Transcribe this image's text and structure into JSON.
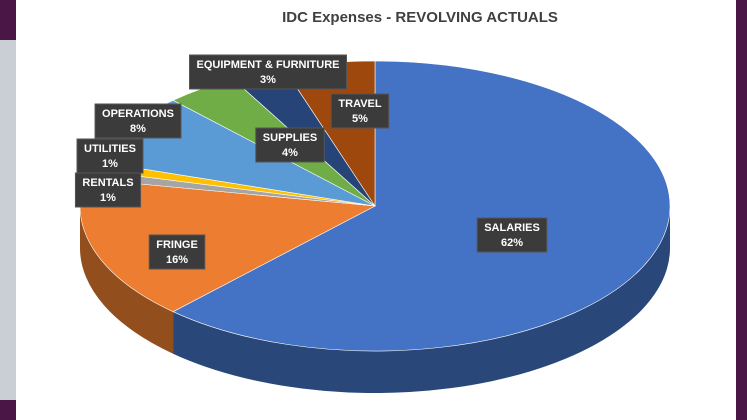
{
  "chart_data": {
    "type": "pie",
    "title": "IDC Expenses - REVOLVING ACTUALS",
    "categories": [
      "SALARIES",
      "FRINGE",
      "RENTALS",
      "UTILITIES",
      "OPERATIONS",
      "SUPPLIES",
      "EQUIPMENT & FURNITURE",
      "TRAVEL"
    ],
    "values": [
      62,
      16,
      1,
      1,
      8,
      4,
      3,
      5
    ],
    "value_labels": [
      "62%",
      "16%",
      "1%",
      "1%",
      "8%",
      "4%",
      "3%",
      "5%"
    ],
    "colors": [
      "#4472c4",
      "#ed7d31",
      "#a5a5a5",
      "#ffc000",
      "#5b9bd5",
      "#70ad47",
      "#264478",
      "#9e480e"
    ]
  }
}
